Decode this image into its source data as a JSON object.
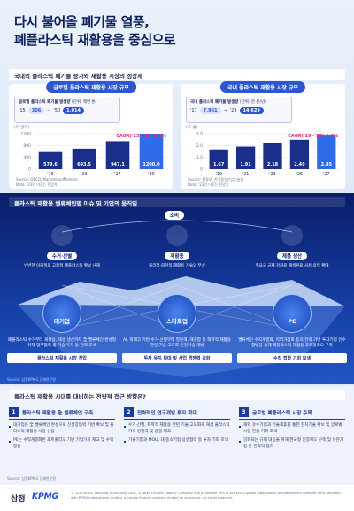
{
  "header": {
    "title_line1": "다시 불어올 폐기물 열풍,",
    "title_line2": "폐플라스틱 재활용을 중심으로"
  },
  "section1": {
    "title": "국내외 플라스틱 폐기물 증가와 재활용 시장의 성장세",
    "charts": [
      {
        "type": "bar",
        "title": "글로벌 플라스틱 재활용 시장 규모",
        "inset": {
          "title": "글로벌 플라스틱 폐기물 발생량",
          "unit": "(단위: 백만 톤)",
          "from_year": "'15",
          "from_value": "306",
          "to_year": "'50",
          "to_value": "1,014"
        },
        "unit": "(억 달러)",
        "categories": [
          "'19",
          "'23",
          "'27",
          "'30"
        ],
        "values": [
          579.6,
          693.5,
          947.1,
          1200.0
        ],
        "value_labels": [
          "579.6",
          "693.5",
          "947.1",
          "1200.0"
        ],
        "ylim": [
          0,
          1200
        ],
        "yticks": [
          0,
          400,
          800,
          1200
        ],
        "cagr": "CAGR('23~'30) 8.1%",
        "source": "Source: OECD, MarketsandMarkets",
        "note": "Note: '23년 이후는 전망치"
      },
      {
        "type": "bar",
        "title": "국내 플라스틱 재활용 시장 규모",
        "inset": {
          "title": "국내 플라스틱 폐기물 발생량",
          "unit": "(단위: 천 톤/년)",
          "from_year": "'17",
          "from_value": "7,961",
          "to_year": "'23",
          "to_value": "14,629"
        },
        "unit": "(조 원)",
        "categories": [
          "'19",
          "'21",
          "'23",
          "'25",
          "'27"
        ],
        "values": [
          1.67,
          1.91,
          2.18,
          2.49,
          2.85
        ],
        "ylim": [
          0,
          3
        ],
        "yticks": [
          0,
          {
            "value": 1,
            "label": "1.0"
          },
          {
            "value": 2,
            "label": "2.0"
          },
          {
            "value": 3,
            "label": "3.0"
          }
        ],
        "cagr": "CAGR('19~'27) 6.9%",
        "source": "Source: 환경부, 한국환경산업기술원",
        "note": "Note: '23년 이후는 전망치"
      }
    ]
  },
  "section2": {
    "title": "플라스틱 재활용 밸류체인별 이슈 및 기업의 움직임",
    "consumption": "소비",
    "stages": [
      {
        "name": "수거·선별",
        "desc": "빈번한 이물질로 고품질 폐플라스틱 확보 난제"
      },
      {
        "name": "재활용",
        "desc": "물리적·화학적 재활용 기술의 부상"
      },
      {
        "name": "제품 생산",
        "desc": "주요국 규제 강화로 재생원료 사용 의무 확대"
      }
    ],
    "players": [
      {
        "name": "대기업",
        "desc": "폐플라스틱 수거부터 재활용, 재생 생산까지 全 밸류체인 완성형 위해 업무협력 및 기술 투자 등 전략 모색",
        "action": "플라스틱 재활용 시장 진입"
      },
      {
        "name": "스타트업",
        "desc": "AI, 픽테크 기반 수거·선별부터 열분해, 해중합 등 화학적 재활용 관련 기술 고도화·원천기술 개발",
        "action": "투자 유치 확대 및 사업 경쟁력 강화"
      },
      {
        "name": "PE",
        "desc": "밸류체인 수직계열화, 지역거점화 등의 전략 기반 투자기업 인수합병을 통해 폐플라스틱 재활용 포트폴리오 구축",
        "action": "수직 접합 기회 모색"
      }
    ],
    "source": "Source: 삼정KPMG 경제연구원"
  },
  "section3": {
    "title": "플라스틱 재활용 시대를 대비하는 전략적 접근 방향은?",
    "columns": [
      {
        "number": "1",
        "title": "플라스틱 재활용 全 밸류체인 구축",
        "bullets": [
          "대기업은 全 밸류체인 완성으로 신성장동력 기반 확보 및 플라스틱 재활용 시장 선점",
          "PE는 수직계열화된 포트폴리오 기반 기업가치 제고 및 수익 창출"
        ]
      },
      {
        "number": "2",
        "title": "전략적인 연구개발 투자 확대",
        "bullets": [
          "수거·선별, 화학적 재활용 관련 기술 고도화로 재생 플라스틱 가격 경쟁력 및 품질 제고",
          "기술기업과 MOU, 대·중소기업 상생협력 등 투자 기회 모색"
        ]
      },
      {
        "number": "3",
        "title": "글로벌 폐플라스틱 시장 주목",
        "bullets": [
          "해외 유수기업과 기술제휴를 통한 현지기술 확보 및 글로벌 시장 진출 기회 모색",
          "강화되는 규제 대응을 위해 한국형 인증제도 구축 및 유관기업 간 전략적 협력"
        ]
      }
    ],
    "source": "Source: 삼정KPMG 경제연구원"
  },
  "footer": {
    "logo_korean": "삼정",
    "logo_kpmg": "KPMG",
    "copyright": "© 2025 KPMG Samjong Accounting Corp., a Korea Limited Liability Company and a member firm of the KPMG global organization of independent member firms affiliated with KPMG International Limited, a private English company limited by guarantee. All rights reserved."
  }
}
